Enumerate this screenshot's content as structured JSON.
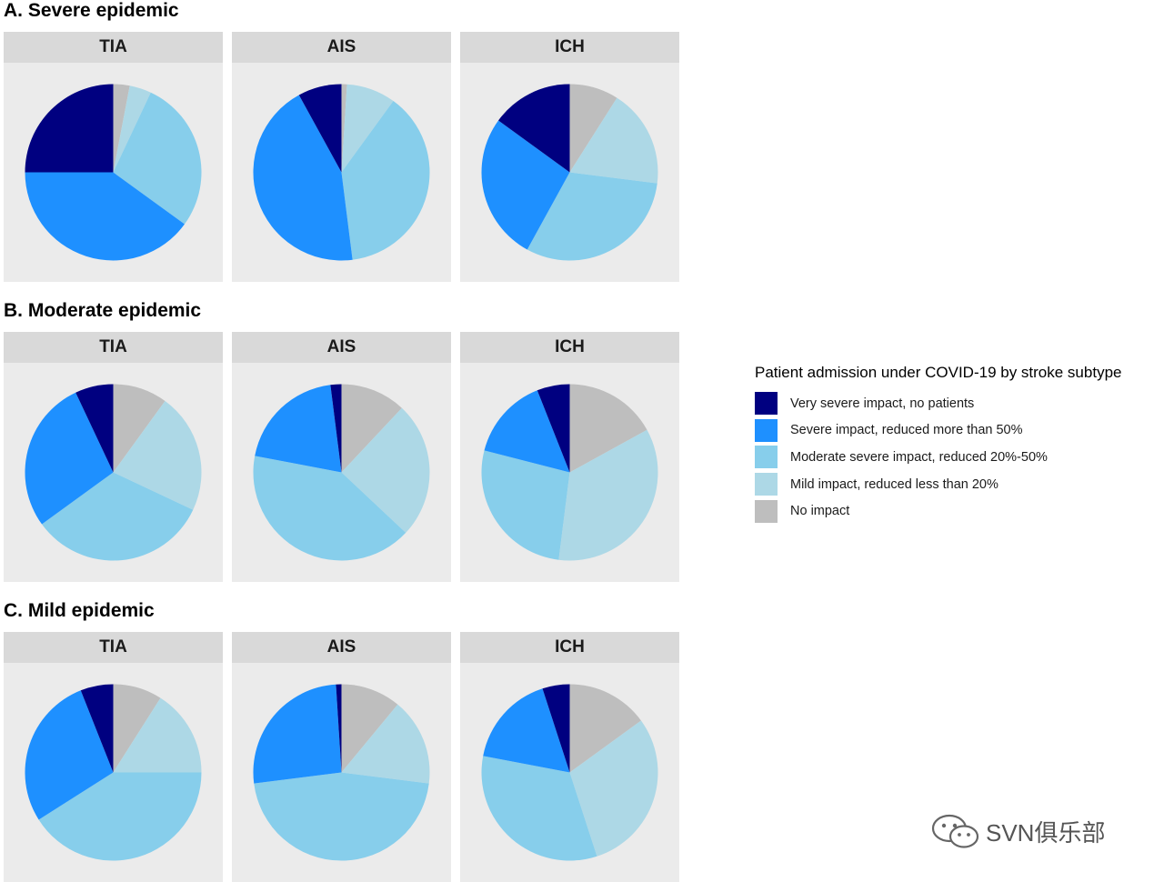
{
  "legend": {
    "title": "Patient admission under COVID-19 by stroke subtype",
    "items": [
      {
        "label": "Very severe impact, no patients",
        "color": "#000080"
      },
      {
        "label": "Severe impact, reduced more than 50%",
        "color": "#1e90ff"
      },
      {
        "label": "Moderate severe impact, reduced 20%-50%",
        "color": "#87ceeb"
      },
      {
        "label": "Mild impact, reduced less than 20%",
        "color": "#add8e6"
      },
      {
        "label": "No impact",
        "color": "#bebebe"
      }
    ]
  },
  "watermark": {
    "text": "SVN俱乐部"
  },
  "chart_data": [
    {
      "type": "pie",
      "title": "A. Severe epidemic",
      "facet": "TIA",
      "categories": [
        "No impact",
        "Mild impact, reduced less than 20%",
        "Moderate severe impact, reduced 20%-50%",
        "Severe impact, reduced more than 50%",
        "Very severe impact, no patients"
      ],
      "values": [
        3,
        4,
        28,
        40,
        25
      ]
    },
    {
      "type": "pie",
      "title": "A. Severe epidemic",
      "facet": "AIS",
      "categories": [
        "No impact",
        "Mild impact, reduced less than 20%",
        "Moderate severe impact, reduced 20%-50%",
        "Severe impact, reduced more than 50%",
        "Very severe impact, no patients"
      ],
      "values": [
        1,
        9,
        38,
        44,
        8
      ]
    },
    {
      "type": "pie",
      "title": "A. Severe epidemic",
      "facet": "ICH",
      "categories": [
        "No impact",
        "Mild impact, reduced less than 20%",
        "Moderate severe impact, reduced 20%-50%",
        "Severe impact, reduced more than 50%",
        "Very severe impact, no patients"
      ],
      "values": [
        9,
        18,
        31,
        27,
        15
      ]
    },
    {
      "type": "pie",
      "title": "B. Moderate epidemic",
      "facet": "TIA",
      "categories": [
        "No impact",
        "Mild impact, reduced less than 20%",
        "Moderate severe impact, reduced 20%-50%",
        "Severe impact, reduced more than 50%",
        "Very severe impact, no patients"
      ],
      "values": [
        10,
        22,
        33,
        28,
        7
      ]
    },
    {
      "type": "pie",
      "title": "B. Moderate epidemic",
      "facet": "AIS",
      "categories": [
        "No impact",
        "Mild impact, reduced less than 20%",
        "Moderate severe impact, reduced 20%-50%",
        "Severe impact, reduced more than 50%",
        "Very severe impact, no patients"
      ],
      "values": [
        12,
        25,
        41,
        20,
        2
      ]
    },
    {
      "type": "pie",
      "title": "B. Moderate epidemic",
      "facet": "ICH",
      "categories": [
        "No impact",
        "Mild impact, reduced less than 20%",
        "Moderate severe impact, reduced 20%-50%",
        "Severe impact, reduced more than 50%",
        "Very severe impact, no patients"
      ],
      "values": [
        17,
        35,
        27,
        15,
        6
      ]
    },
    {
      "type": "pie",
      "title": "C. Mild epidemic",
      "facet": "TIA",
      "categories": [
        "No impact",
        "Mild impact, reduced less than 20%",
        "Moderate severe impact, reduced 20%-50%",
        "Severe impact, reduced more than 50%",
        "Very severe impact, no patients"
      ],
      "values": [
        9,
        16,
        41,
        28,
        6
      ]
    },
    {
      "type": "pie",
      "title": "C. Mild epidemic",
      "facet": "AIS",
      "categories": [
        "No impact",
        "Mild impact, reduced less than 20%",
        "Moderate severe impact, reduced 20%-50%",
        "Severe impact, reduced more than 50%",
        "Very severe impact, no patients"
      ],
      "values": [
        11,
        16,
        46,
        26,
        1
      ]
    },
    {
      "type": "pie",
      "title": "C. Mild epidemic",
      "facet": "ICH",
      "categories": [
        "No impact",
        "Mild impact, reduced less than 20%",
        "Moderate severe impact, reduced 20%-50%",
        "Severe impact, reduced more than 50%",
        "Very severe impact, no patients"
      ],
      "values": [
        15,
        30,
        33,
        17,
        5
      ]
    }
  ]
}
